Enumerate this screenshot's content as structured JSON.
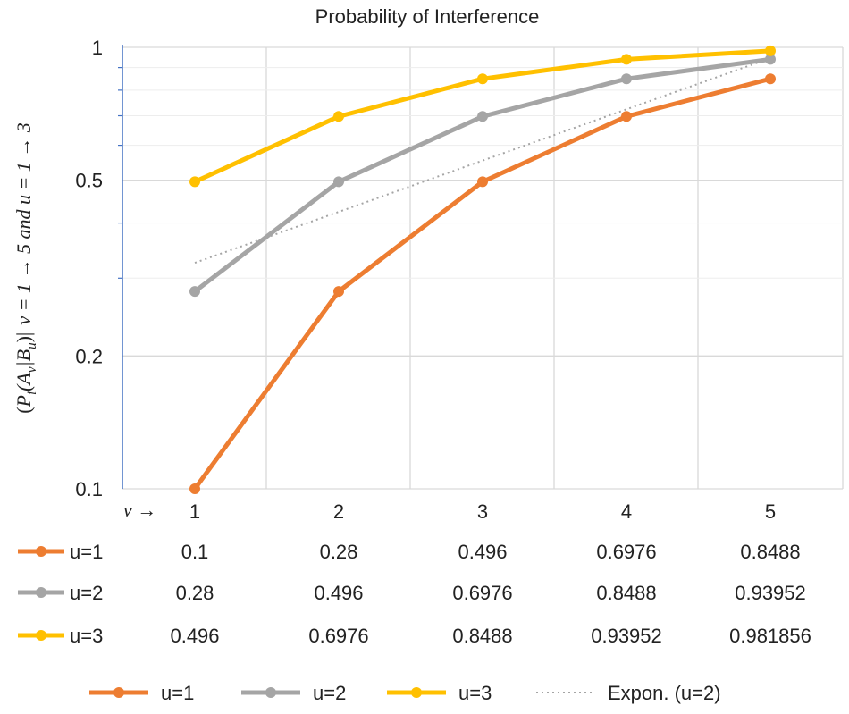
{
  "chart_data": {
    "type": "line",
    "title": "Probability of Interference",
    "ylabel": "(P_i(A_v|B_u)| v = 1 → 5 and u = 1 → 3",
    "ylabel_parts": {
      "open": "(",
      "P": "P",
      "i": "i",
      "A": "(A",
      "v": "v",
      "sep": "|B",
      "u": "u",
      "close": ")|",
      "rest": "v = 1 → 5 and u = 1 → 3"
    },
    "xlabel": "v →",
    "yscale": "log",
    "ylim": [
      0.1,
      1
    ],
    "yticks": [
      {
        "value": 0.1,
        "label": "0.1"
      },
      {
        "value": 0.2,
        "label": "0.2"
      },
      {
        "value": 0.5,
        "label": "0.5"
      },
      {
        "value": 1,
        "label": "1"
      }
    ],
    "yminor": [
      0.3,
      0.4,
      0.6,
      0.7,
      0.8,
      0.9
    ],
    "categories": [
      "1",
      "2",
      "3",
      "4",
      "5"
    ],
    "series": [
      {
        "name": "u=1",
        "color": "#ED7D31",
        "values": [
          0.1,
          0.28,
          0.496,
          0.6976,
          0.8488
        ],
        "labels": [
          "0.1",
          "0.28",
          "0.496",
          "0.6976",
          "0.8488"
        ]
      },
      {
        "name": "u=2",
        "color": "#A5A5A5",
        "values": [
          0.28,
          0.496,
          0.6976,
          0.8488,
          0.93952
        ],
        "labels": [
          "0.28",
          "0.496",
          "0.6976",
          "0.8488",
          "0.93952"
        ]
      },
      {
        "name": "u=3",
        "color": "#FFC000",
        "values": [
          0.496,
          0.6976,
          0.8488,
          0.93952,
          0.981856
        ],
        "labels": [
          "0.496",
          "0.6976",
          "0.8488",
          "0.93952",
          "0.981856"
        ]
      }
    ],
    "trendline": {
      "name": "Expon. (u=2)",
      "color": "#A5A5A5",
      "values": [
        0.325,
        0.424,
        0.554,
        0.724,
        0.945
      ]
    },
    "legend_position": "bottom",
    "grid": true
  }
}
